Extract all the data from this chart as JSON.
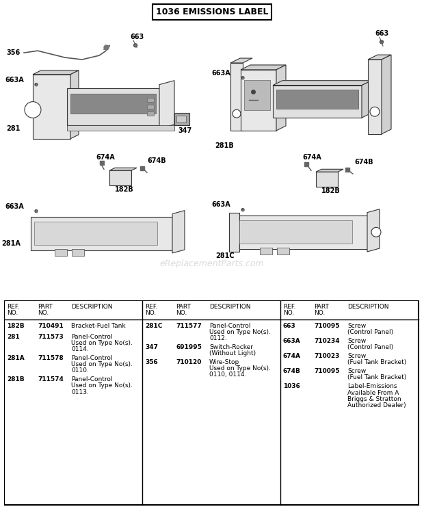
{
  "title": "1036 EMISSIONS LABEL",
  "bg_color": "#ffffff",
  "watermark": "eReplacementParts.com",
  "table_columns": [
    {
      "rows": [
        [
          "182B",
          "710491",
          "Bracket-Fuel Tank"
        ],
        [
          "281",
          "711573",
          "Panel-Control\nUsed on Type No(s).\n0114."
        ],
        [
          "281A",
          "711578",
          "Panel-Control\nUsed on Type No(s).\n0110."
        ],
        [
          "281B",
          "711574",
          "Panel-Control\nUsed on Type No(s).\n0113."
        ]
      ]
    },
    {
      "rows": [
        [
          "281C",
          "711577",
          "Panel-Control\nUsed on Type No(s).\n0112."
        ],
        [
          "347",
          "691995",
          "Switch-Rocker\n(Without Light)"
        ],
        [
          "356",
          "710120",
          "Wire-Stop\nUsed on Type No(s).\n0110, 0114."
        ]
      ]
    },
    {
      "rows": [
        [
          "663",
          "710095",
          "Screw\n(Control Panel)"
        ],
        [
          "663A",
          "710234",
          "Screw\n(Control Panel)"
        ],
        [
          "674A",
          "710023",
          "Screw\n(Fuel Tank Bracket)"
        ],
        [
          "674B",
          "710095",
          "Screw\n(Fuel Tank Bracket)"
        ],
        [
          "1036",
          "",
          "Label-Emissions\nAvailable From A\nBriggs & Stratton\nAuthorized Dealer)"
        ]
      ]
    }
  ]
}
